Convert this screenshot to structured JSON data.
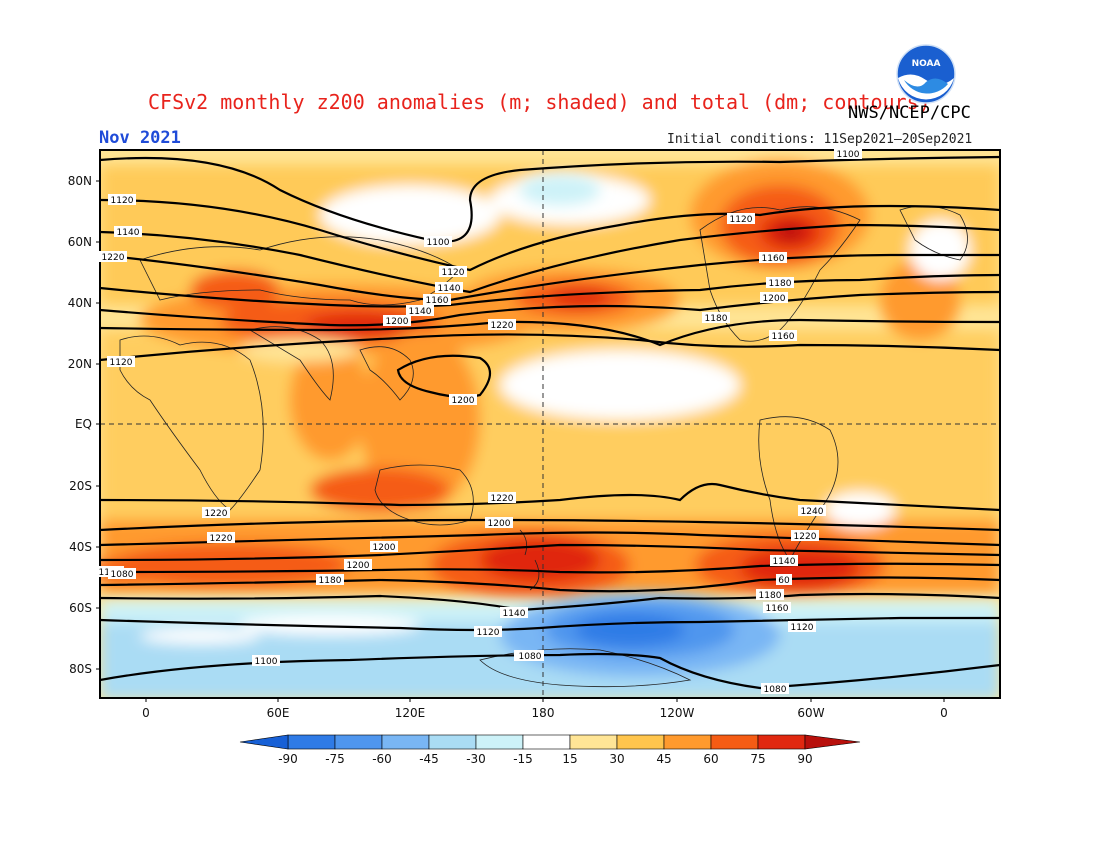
{
  "header": {
    "title": "CFSv2 monthly z200 anomalies (m; shaded) and total (dm; contours)",
    "agency": "NWS/NCEP/CPC",
    "month": "Nov 2021",
    "initial_conditions": "Initial conditions: 11Sep2021–20Sep2021",
    "logo_text": "NOAA"
  },
  "axes": {
    "lat_labels": [
      "80N",
      "60N",
      "40N",
      "20N",
      "EQ",
      "20S",
      "40S",
      "60S",
      "80S"
    ],
    "lon_labels": [
      "0",
      "60E",
      "120E",
      "180",
      "120W",
      "60W",
      "0"
    ]
  },
  "colorbar": {
    "ticks": [
      "-90",
      "-75",
      "-60",
      "-45",
      "-30",
      "-15",
      "15",
      "30",
      "45",
      "60",
      "75",
      "90"
    ],
    "colors": [
      "#1760d6",
      "#2f7be6",
      "#4f96ee",
      "#79b6f4",
      "#aadcf4",
      "#cdf2f8",
      "#ffffff",
      "#ffe596",
      "#ffc54d",
      "#ff9a2e",
      "#f55c14",
      "#e02810",
      "#b8100c"
    ]
  },
  "contour_labels": [
    {
      "text": "1100"
    },
    {
      "text": "1120"
    },
    {
      "text": "1140"
    },
    {
      "text": "1160"
    },
    {
      "text": "1120"
    },
    {
      "text": "1100"
    },
    {
      "text": "1120"
    },
    {
      "text": "1140"
    },
    {
      "text": "1160"
    },
    {
      "text": "1180"
    },
    {
      "text": "1200"
    },
    {
      "text": "1220"
    },
    {
      "text": "1200"
    },
    {
      "text": "1220"
    },
    {
      "text": "1120"
    },
    {
      "text": "1140"
    },
    {
      "text": "1160"
    },
    {
      "text": "1180"
    },
    {
      "text": "1200"
    },
    {
      "text": "1220"
    },
    {
      "text": "1240"
    },
    {
      "text": "1220"
    },
    {
      "text": "1220"
    },
    {
      "text": "1200"
    },
    {
      "text": "1220"
    },
    {
      "text": "1200"
    },
    {
      "text": "1200"
    },
    {
      "text": "1180"
    },
    {
      "text": "1160"
    },
    {
      "text": "1140"
    },
    {
      "text": "60"
    },
    {
      "text": "1180"
    },
    {
      "text": "1160"
    },
    {
      "text": "1140"
    },
    {
      "text": "1120"
    },
    {
      "text": "1120"
    },
    {
      "text": "1100"
    },
    {
      "text": "1100"
    },
    {
      "text": "1080"
    },
    {
      "text": "1080"
    },
    {
      "text": "1080"
    }
  ]
}
